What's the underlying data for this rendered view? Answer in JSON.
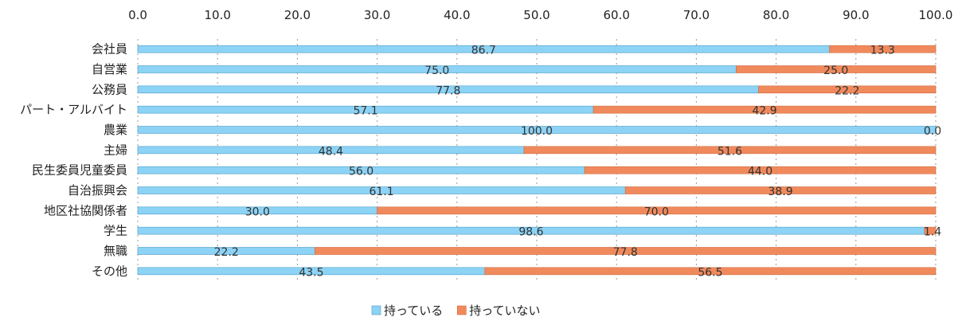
{
  "chart_data": {
    "type": "bar",
    "orientation": "horizontal",
    "stacked": true,
    "xlim": [
      0,
      100
    ],
    "x_ticks": [
      "0.0",
      "10.0",
      "20.0",
      "30.0",
      "40.0",
      "50.0",
      "60.0",
      "70.0",
      "80.0",
      "90.0",
      "100.0"
    ],
    "x_axis_position": "top",
    "grid": "vertical dotted",
    "legend_position": "bottom-center",
    "categories": [
      "会社員",
      "自営業",
      "公務員",
      "パート・アルバイト",
      "農業",
      "主婦",
      "民生委員児童委員",
      "自治振興会",
      "地区社協関係者",
      "学生",
      "無職",
      "その他"
    ],
    "series": [
      {
        "name": "持っている",
        "color": "#8DD3F5",
        "values": [
          86.7,
          75.0,
          77.8,
          57.1,
          100.0,
          48.4,
          56.0,
          61.1,
          30.0,
          98.6,
          22.2,
          43.5
        ],
        "labels": [
          "86.7",
          "75.0",
          "77.8",
          "57.1",
          "100.0",
          "48.4",
          "56.0",
          "61.1",
          "30.0",
          "98.6",
          "22.2",
          "43.5"
        ]
      },
      {
        "name": "持っていない",
        "color": "#F08A5D",
        "values": [
          13.3,
          25.0,
          22.2,
          42.9,
          0.0,
          51.6,
          44.0,
          38.9,
          70.0,
          1.4,
          77.8,
          56.5
        ],
        "labels": [
          "13.3",
          "25.0",
          "22.2",
          "42.9",
          "0.0",
          "51.6",
          "44.0",
          "38.9",
          "70.0",
          "1.4",
          "77.8",
          "56.5"
        ]
      }
    ]
  }
}
